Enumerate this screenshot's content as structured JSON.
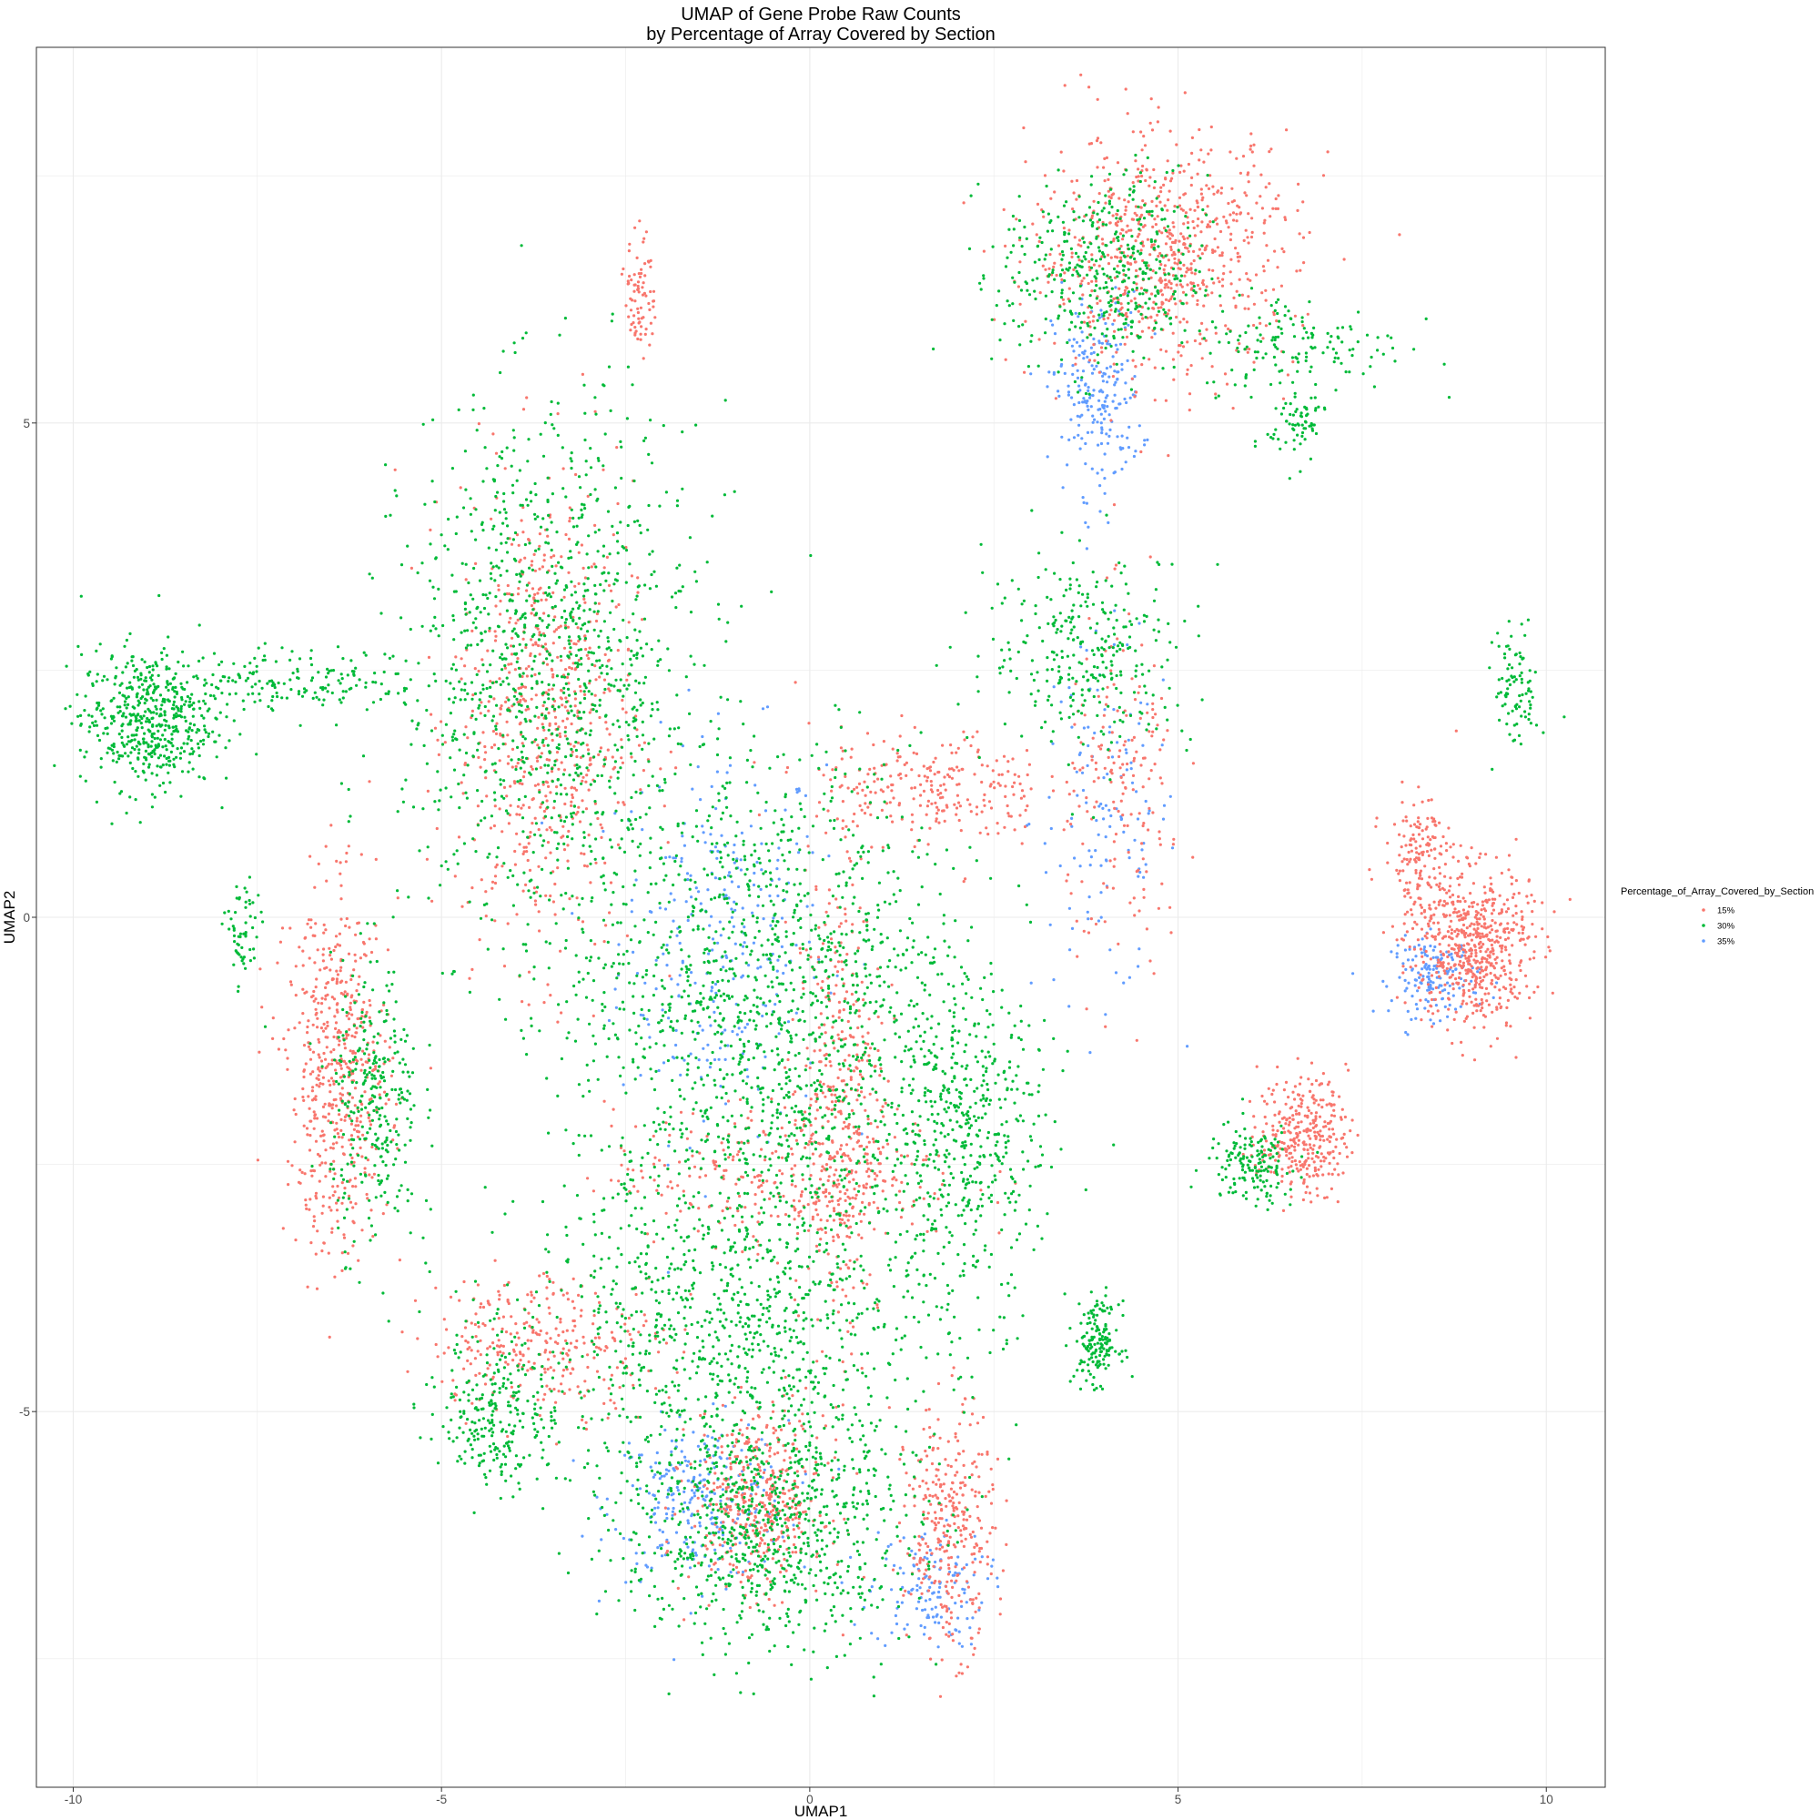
{
  "chart_data": {
    "type": "scatter",
    "title_lines": [
      "UMAP of Gene Probe Raw Counts",
      "by Percentage of Array Covered by Section"
    ],
    "xlabel": "UMAP1",
    "ylabel": "UMAP2",
    "xlim": [
      -10.5,
      10.8
    ],
    "ylim": [
      -8.8,
      8.8
    ],
    "x_ticks": [
      -10,
      -5,
      0,
      5,
      10
    ],
    "x_tick_labels": [
      "-10",
      "-5",
      "0",
      "5",
      "10"
    ],
    "y_ticks": [
      -5,
      0,
      5
    ],
    "y_tick_labels": [
      "-5",
      "0",
      "5"
    ],
    "grid": true,
    "legend": {
      "title": "Percentage_of_Array_Covered_by_Section",
      "placement": "right",
      "entries": [
        "15%",
        "30%",
        "35%"
      ]
    },
    "series_colors": {
      "15%": "#F8766D",
      "30%": "#00BA38",
      "35%": "#619CFF"
    },
    "draw_order": [
      "35%",
      "15%",
      "30%"
    ],
    "clusters": [
      {
        "series": "30%",
        "cx": -0.5,
        "cy": -1.0,
        "sx": 1.4,
        "sy": 1.3,
        "n": 1500
      },
      {
        "series": "30%",
        "cx": -3.5,
        "cy": 2.5,
        "sx": 1.0,
        "sy": 1.3,
        "n": 1100
      },
      {
        "series": "15%",
        "cx": -3.6,
        "cy": 2.0,
        "sx": 0.6,
        "sy": 1.2,
        "n": 650
      },
      {
        "series": "35%",
        "cx": -1.2,
        "cy": -0.2,
        "sx": 0.7,
        "sy": 1.0,
        "n": 280
      },
      {
        "series": "15%",
        "cx": 0.4,
        "cy": -1.9,
        "sx": 0.3,
        "sy": 1.2,
        "n": 380
      },
      {
        "series": "15%",
        "cx": -0.3,
        "cy": -2.6,
        "sx": 1.2,
        "sy": 0.35,
        "n": 300
      },
      {
        "series": "15%",
        "cx": 1.6,
        "cy": 1.3,
        "sx": 0.8,
        "sy": 0.3,
        "n": 260
      },
      {
        "series": "30%",
        "cx": 2.1,
        "cy": -2.3,
        "sx": 0.5,
        "sy": 0.8,
        "n": 420
      },
      {
        "series": "30%",
        "cx": 3.8,
        "cy": 2.7,
        "sx": 0.7,
        "sy": 0.5,
        "n": 300
      },
      {
        "series": "35%",
        "cx": 4.0,
        "cy": 1.0,
        "sx": 0.5,
        "sy": 0.9,
        "n": 130
      },
      {
        "series": "15%",
        "cx": 4.3,
        "cy": 1.2,
        "sx": 0.4,
        "sy": 0.9,
        "n": 170
      },
      {
        "series": "30%",
        "cx": -1.0,
        "cy": -4.2,
        "sx": 1.4,
        "sy": 0.8,
        "n": 900
      },
      {
        "series": "30%",
        "cx": -0.6,
        "cy": -6.2,
        "sx": 1.0,
        "sy": 0.6,
        "n": 800
      },
      {
        "series": "15%",
        "cx": -0.7,
        "cy": -5.9,
        "sx": 0.45,
        "sy": 0.45,
        "n": 420
      },
      {
        "series": "15%",
        "cx": 1.9,
        "cy": -6.2,
        "sx": 0.3,
        "sy": 0.6,
        "n": 320
      },
      {
        "series": "15%",
        "cx": -3.6,
        "cy": -4.3,
        "sx": 0.8,
        "sy": 0.35,
        "n": 300
      },
      {
        "series": "35%",
        "cx": -1.5,
        "cy": -5.9,
        "sx": 0.6,
        "sy": 0.4,
        "n": 260
      },
      {
        "series": "35%",
        "cx": 1.6,
        "cy": -6.8,
        "sx": 0.4,
        "sy": 0.3,
        "n": 140
      },
      {
        "series": "30%",
        "cx": -4.2,
        "cy": -5.0,
        "sx": 0.4,
        "sy": 0.4,
        "n": 260
      },
      {
        "series": "15%",
        "cx": 4.8,
        "cy": 6.7,
        "sx": 0.9,
        "sy": 0.6,
        "n": 750
      },
      {
        "series": "30%",
        "cx": 4.0,
        "cy": 6.5,
        "sx": 0.7,
        "sy": 0.5,
        "n": 450
      },
      {
        "series": "35%",
        "cx": 3.9,
        "cy": 5.3,
        "sx": 0.3,
        "sy": 0.5,
        "n": 220
      },
      {
        "series": "30%",
        "cx": 6.7,
        "cy": 5.8,
        "sx": 0.7,
        "sy": 0.25,
        "n": 140
      },
      {
        "series": "30%",
        "cx": -9.0,
        "cy": 2.0,
        "sx": 0.45,
        "sy": 0.35,
        "n": 520
      },
      {
        "series": "30%",
        "cx": -7.0,
        "cy": 2.4,
        "sx": 0.9,
        "sy": 0.15,
        "n": 180
      },
      {
        "series": "15%",
        "cx": -6.4,
        "cy": -1.6,
        "sx": 0.35,
        "sy": 0.9,
        "n": 560
      },
      {
        "series": "30%",
        "cx": -5.9,
        "cy": -1.9,
        "sx": 0.3,
        "sy": 0.7,
        "n": 300
      },
      {
        "series": "15%",
        "cx": 9.0,
        "cy": -0.3,
        "sx": 0.4,
        "sy": 0.4,
        "n": 600
      },
      {
        "series": "35%",
        "cx": 8.5,
        "cy": -0.6,
        "sx": 0.3,
        "sy": 0.2,
        "n": 160
      },
      {
        "series": "15%",
        "cx": 8.3,
        "cy": 0.6,
        "sx": 0.25,
        "sy": 0.3,
        "n": 160
      },
      {
        "series": "15%",
        "cx": 6.7,
        "cy": -2.2,
        "sx": 0.3,
        "sy": 0.3,
        "n": 320
      },
      {
        "series": "30%",
        "cx": 6.0,
        "cy": -2.5,
        "sx": 0.3,
        "sy": 0.2,
        "n": 160
      },
      {
        "series": "30%",
        "cx": 3.9,
        "cy": -4.3,
        "sx": 0.15,
        "sy": 0.2,
        "n": 160
      },
      {
        "series": "15%",
        "cx": -2.3,
        "cy": 6.3,
        "sx": 0.1,
        "sy": 0.3,
        "n": 80
      },
      {
        "series": "30%",
        "cx": -7.7,
        "cy": -0.2,
        "sx": 0.12,
        "sy": 0.3,
        "n": 60
      },
      {
        "series": "30%",
        "cx": 9.6,
        "cy": 2.3,
        "sx": 0.15,
        "sy": 0.3,
        "n": 90
      },
      {
        "series": "30%",
        "cx": 6.6,
        "cy": 5.0,
        "sx": 0.2,
        "sy": 0.2,
        "n": 70
      }
    ]
  }
}
